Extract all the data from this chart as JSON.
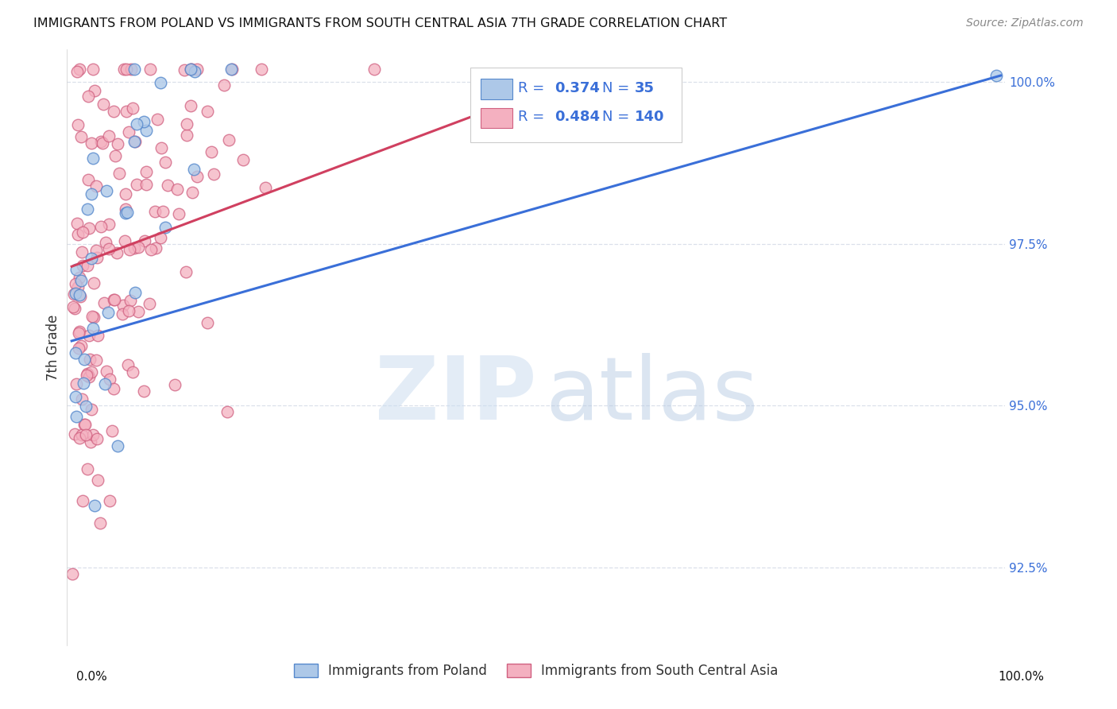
{
  "title": "IMMIGRANTS FROM POLAND VS IMMIGRANTS FROM SOUTH CENTRAL ASIA 7TH GRADE CORRELATION CHART",
  "source": "Source: ZipAtlas.com",
  "ylabel": "7th Grade",
  "legend_text_color": "#3a6fd8",
  "blue_color": "#adc8e8",
  "pink_color": "#f4b0c0",
  "blue_edge_color": "#5588cc",
  "pink_edge_color": "#d06080",
  "blue_line_color": "#3a6fd8",
  "pink_line_color": "#d04060",
  "grid_color": "#d8dde8",
  "background_color": "#ffffff",
  "xlim": [
    0.0,
    1.0
  ],
  "ylim": [
    0.913,
    1.005
  ],
  "yticks": [
    0.925,
    0.95,
    0.975,
    1.0
  ],
  "ytick_labels": [
    "92.5%",
    "95.0%",
    "97.5%",
    "100.0%"
  ],
  "blue_line_x0": 0.0,
  "blue_line_y0": 0.96,
  "blue_line_x1": 1.0,
  "blue_line_y1": 1.001,
  "pink_line_x0": 0.0,
  "pink_line_y0": 0.9715,
  "pink_line_x1": 0.53,
  "pink_line_y1": 1.0,
  "marker_size": 110,
  "title_fontsize": 11.5,
  "source_fontsize": 10,
  "tick_fontsize": 11,
  "legend_fontsize": 13
}
